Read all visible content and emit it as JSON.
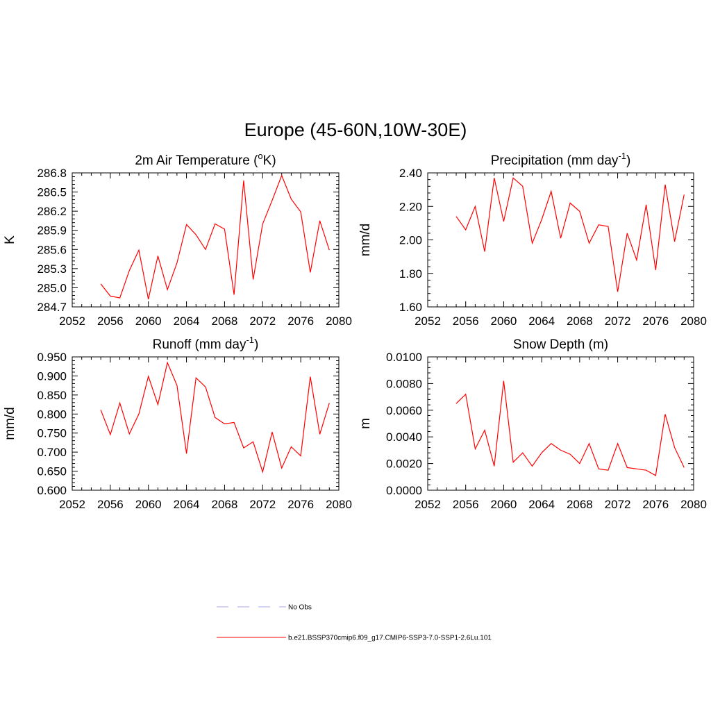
{
  "figure": {
    "title": "Europe (45-60N,10W-30E)"
  },
  "chart_data": [
    {
      "type": "line",
      "title": "2m Air Temperature (",
      "title_sup": "o",
      "title_after": "K)",
      "xlabel": "",
      "ylabel": "K",
      "xlim": [
        2052,
        2080
      ],
      "ylim": [
        284.7,
        286.8
      ],
      "xticks": [
        2052,
        2056,
        2060,
        2064,
        2068,
        2072,
        2076,
        2080
      ],
      "yticks": [
        "284.7",
        "285.0",
        "285.3",
        "285.6",
        "285.9",
        "286.2",
        "286.5",
        "286.8"
      ],
      "ytick_values": [
        284.7,
        285.0,
        285.3,
        285.6,
        285.9,
        286.2,
        286.5,
        286.8
      ],
      "color": "#ff0000",
      "series": [
        {
          "x": [
            2055,
            2056,
            2057,
            2058,
            2059,
            2060,
            2061,
            2062,
            2063,
            2064,
            2065,
            2066,
            2067,
            2068,
            2069,
            2070,
            2071,
            2072,
            2073,
            2074,
            2075,
            2076,
            2077,
            2078,
            2079
          ],
          "values": [
            285.06,
            284.87,
            284.84,
            285.27,
            285.59,
            284.82,
            285.5,
            284.97,
            285.39,
            285.99,
            285.83,
            285.6,
            286.0,
            285.92,
            284.89,
            286.68,
            285.13,
            286.0,
            286.37,
            286.76,
            286.39,
            286.19,
            285.24,
            286.05,
            285.59
          ]
        }
      ]
    },
    {
      "type": "line",
      "title": "Precipitation (mm day",
      "title_sup": "-1",
      "title_after": ")",
      "xlabel": "",
      "ylabel": "mm/d",
      "xlim": [
        2052,
        2080
      ],
      "ylim": [
        1.6,
        2.4
      ],
      "xticks": [
        2052,
        2056,
        2060,
        2064,
        2068,
        2072,
        2076,
        2080
      ],
      "yticks": [
        "1.60",
        "1.80",
        "2.00",
        "2.20",
        "2.40"
      ],
      "ytick_values": [
        1.6,
        1.8,
        2.0,
        2.2,
        2.4
      ],
      "color": "#ff0000",
      "series": [
        {
          "x": [
            2055,
            2056,
            2057,
            2058,
            2059,
            2060,
            2061,
            2062,
            2063,
            2064,
            2065,
            2066,
            2067,
            2068,
            2069,
            2070,
            2071,
            2072,
            2073,
            2074,
            2075,
            2076,
            2077,
            2078,
            2079
          ],
          "values": [
            2.14,
            2.06,
            2.2,
            1.93,
            2.37,
            2.11,
            2.37,
            2.32,
            1.98,
            2.12,
            2.29,
            2.01,
            2.22,
            2.17,
            1.98,
            2.09,
            2.08,
            1.69,
            2.04,
            1.88,
            2.21,
            1.82,
            2.33,
            1.99,
            2.27
          ]
        }
      ]
    },
    {
      "type": "line",
      "title": "Runoff (mm day",
      "title_sup": "-1",
      "title_after": ")",
      "xlabel": "",
      "ylabel": "mm/d",
      "xlim": [
        2052,
        2080
      ],
      "ylim": [
        0.6,
        0.95
      ],
      "xticks": [
        2052,
        2056,
        2060,
        2064,
        2068,
        2072,
        2076,
        2080
      ],
      "yticks": [
        "0.600",
        "0.650",
        "0.700",
        "0.750",
        "0.800",
        "0.850",
        "0.900",
        "0.950"
      ],
      "ytick_values": [
        0.6,
        0.65,
        0.7,
        0.75,
        0.8,
        0.85,
        0.9,
        0.95
      ],
      "color": "#ff0000",
      "series": [
        {
          "x": [
            2055,
            2056,
            2057,
            2058,
            2059,
            2060,
            2061,
            2062,
            2063,
            2064,
            2065,
            2066,
            2067,
            2068,
            2069,
            2070,
            2071,
            2072,
            2073,
            2074,
            2075,
            2076,
            2077,
            2078,
            2079
          ],
          "values": [
            0.811,
            0.746,
            0.829,
            0.748,
            0.8,
            0.899,
            0.825,
            0.935,
            0.875,
            0.696,
            0.895,
            0.871,
            0.791,
            0.774,
            0.778,
            0.711,
            0.727,
            0.648,
            0.753,
            0.658,
            0.714,
            0.69,
            0.898,
            0.747,
            0.829
          ]
        }
      ]
    },
    {
      "type": "line",
      "title": "Snow Depth (m)",
      "title_sup": "",
      "title_after": "",
      "xlabel": "",
      "ylabel": "m",
      "xlim": [
        2052,
        2080
      ],
      "ylim": [
        0.0,
        0.01
      ],
      "xticks": [
        2052,
        2056,
        2060,
        2064,
        2068,
        2072,
        2076,
        2080
      ],
      "yticks": [
        "0.0000",
        "0.0020",
        "0.0040",
        "0.0060",
        "0.0080",
        "0.0100"
      ],
      "ytick_values": [
        0.0,
        0.002,
        0.004,
        0.006,
        0.008,
        0.01
      ],
      "color": "#ff0000",
      "series": [
        {
          "x": [
            2055,
            2056,
            2057,
            2058,
            2059,
            2060,
            2061,
            2062,
            2063,
            2064,
            2065,
            2066,
            2067,
            2068,
            2069,
            2070,
            2071,
            2072,
            2073,
            2074,
            2075,
            2076,
            2077,
            2078,
            2079
          ],
          "values": [
            0.0065,
            0.0072,
            0.0031,
            0.0045,
            0.0018,
            0.0082,
            0.0021,
            0.0028,
            0.0018,
            0.0028,
            0.0035,
            0.003,
            0.0027,
            0.002,
            0.0035,
            0.0016,
            0.0015,
            0.0035,
            0.0017,
            0.0016,
            0.0015,
            0.0011,
            0.0057,
            0.0032,
            0.0017
          ]
        }
      ]
    }
  ],
  "legend": {
    "entries": [
      {
        "label": "No Obs",
        "color": "#aaaaee",
        "style": "dashed"
      },
      {
        "label": "b.e21.BSSP370cmip6.f09_g17.CMIP6-SSP3-7.0-SSP1-2.6Lu.101",
        "color": "#ff0000",
        "style": "solid"
      }
    ]
  }
}
